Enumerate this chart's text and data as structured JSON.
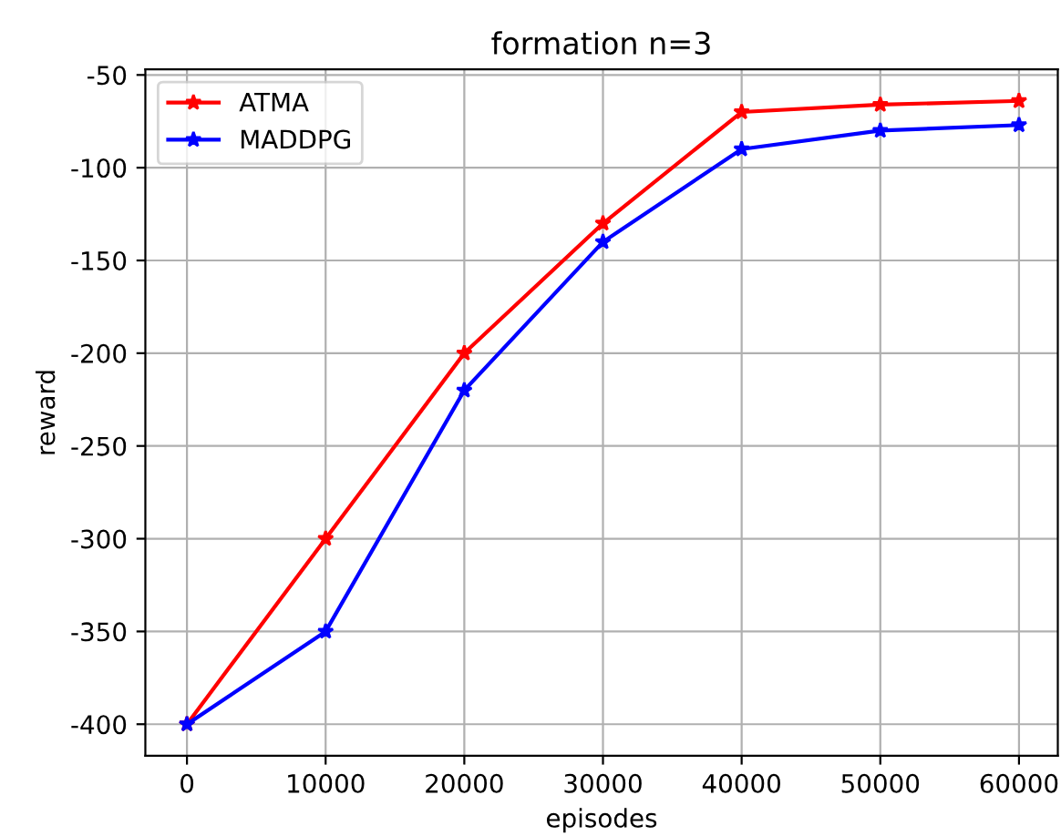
{
  "chart_data": {
    "type": "line",
    "title": "formation n=3",
    "xlabel": "episodes",
    "ylabel": "reward",
    "x": [
      0,
      10000,
      20000,
      30000,
      40000,
      50000,
      60000
    ],
    "series": [
      {
        "name": "ATMA",
        "color": "#ff0000",
        "values": [
          -400,
          -300,
          -200,
          -130,
          -70,
          -66,
          -64
        ]
      },
      {
        "name": "MADDPG",
        "color": "#0000ff",
        "values": [
          -400,
          -350,
          -220,
          -140,
          -90,
          -80,
          -77
        ]
      }
    ],
    "xlim": [
      -3000,
      62800
    ],
    "xticks": [
      0,
      10000,
      20000,
      30000,
      40000,
      50000,
      60000
    ],
    "ylim": [
      -417,
      -47
    ],
    "yticks": [
      -400,
      -350,
      -300,
      -250,
      -200,
      -150,
      -100,
      -50
    ],
    "grid": true,
    "legend": "top left",
    "marker": "star",
    "line_style": "solid"
  }
}
